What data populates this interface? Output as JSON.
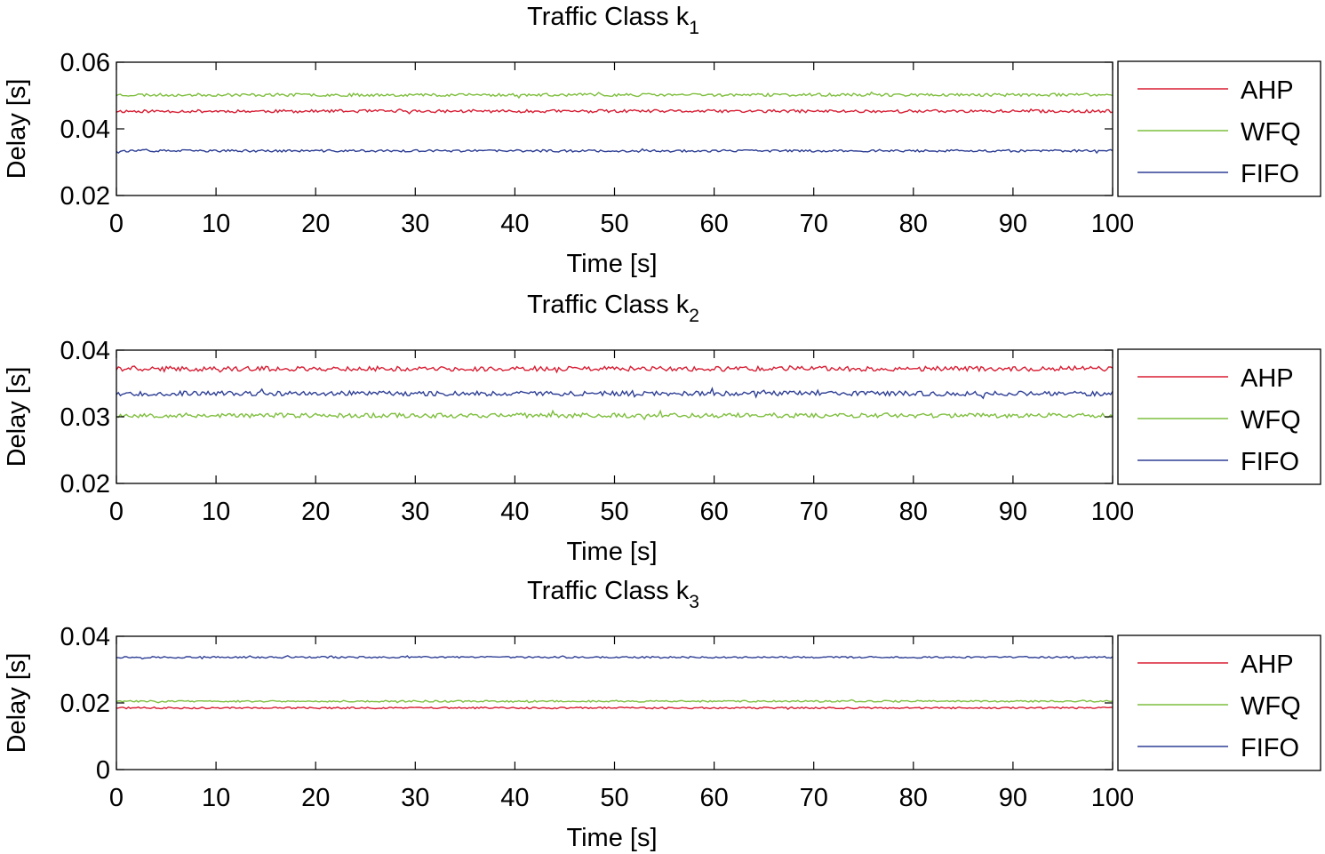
{
  "chart_data": [
    {
      "type": "line",
      "title": "Traffic Class k",
      "title_subscript": "1",
      "xlabel": "Time [s]",
      "ylabel": "Delay [s]",
      "xlim": [
        0,
        100
      ],
      "ylim": [
        0.02,
        0.06
      ],
      "xticks": [
        "0",
        "10",
        "20",
        "30",
        "40",
        "50",
        "60",
        "70",
        "80",
        "90",
        "100"
      ],
      "yticks": [
        "0.02",
        "0.04",
        "0.06"
      ],
      "legend_position": "outside-right",
      "series": [
        {
          "name": "AHP",
          "color": "#d81e34",
          "mean": 0.0453,
          "noise": 0.00045,
          "seed": 11
        },
        {
          "name": "WFQ",
          "color": "#7fbf3f",
          "mean": 0.0502,
          "noise": 0.00045,
          "seed": 23
        },
        {
          "name": "FIFO",
          "color": "#2e3f95",
          "mean": 0.0334,
          "noise": 0.00035,
          "seed": 37
        }
      ]
    },
    {
      "type": "line",
      "title": "Traffic Class k",
      "title_subscript": "2",
      "xlabel": "Time [s]",
      "ylabel": "Delay [s]",
      "xlim": [
        0,
        100
      ],
      "ylim": [
        0.02,
        0.04
      ],
      "xticks": [
        "0",
        "10",
        "20",
        "30",
        "40",
        "50",
        "60",
        "70",
        "80",
        "90",
        "100"
      ],
      "yticks": [
        "0.02",
        "0.03",
        "0.04"
      ],
      "legend_position": "outside-right",
      "series": [
        {
          "name": "AHP",
          "color": "#d81e34",
          "mean": 0.0372,
          "noise": 0.00035,
          "seed": 41
        },
        {
          "name": "WFQ",
          "color": "#7fbf3f",
          "mean": 0.0302,
          "noise": 0.00035,
          "seed": 53
        },
        {
          "name": "FIFO",
          "color": "#2e3f95",
          "mean": 0.0335,
          "noise": 0.00035,
          "seed": 67
        }
      ]
    },
    {
      "type": "line",
      "title": "Traffic Class k",
      "title_subscript": "3",
      "xlabel": "Time [s]",
      "ylabel": "Delay [s]",
      "xlim": [
        0,
        100
      ],
      "ylim": [
        0,
        0.04
      ],
      "xticks": [
        "0",
        "10",
        "20",
        "30",
        "40",
        "50",
        "60",
        "70",
        "80",
        "90",
        "100"
      ],
      "yticks": [
        "0",
        "0.02",
        "0.04"
      ],
      "legend_position": "outside-right",
      "series": [
        {
          "name": "AHP",
          "color": "#d81e34",
          "mean": 0.0185,
          "noise": 0.00025,
          "seed": 71
        },
        {
          "name": "WFQ",
          "color": "#7fbf3f",
          "mean": 0.0205,
          "noise": 0.00025,
          "seed": 83
        },
        {
          "name": "FIFO",
          "color": "#2e3f95",
          "mean": 0.0337,
          "noise": 0.00025,
          "seed": 97
        }
      ]
    }
  ]
}
